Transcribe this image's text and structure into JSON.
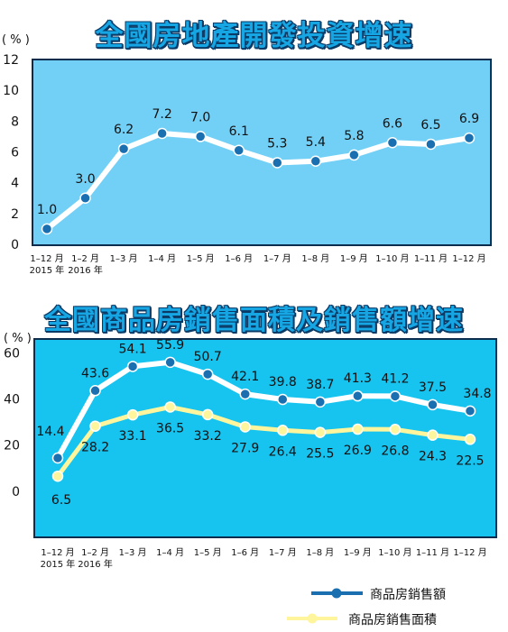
{
  "chart_data": [
    {
      "type": "line",
      "title": "全國房地產開發投資增速",
      "unit_label": "( % )",
      "categories": [
        "1–12 月",
        "1–2 月",
        "1–3 月",
        "1–4 月",
        "1–5 月",
        "1–6 月",
        "1–7 月",
        "1–8 月",
        "1–9 月",
        "1–10 月",
        "1–11 月",
        "1–12 月"
      ],
      "year_labels": [
        "2015 年",
        "2016 年"
      ],
      "yticks": [
        "0",
        "2",
        "4",
        "6",
        "8",
        "10",
        "12"
      ],
      "ylim": [
        0,
        12
      ],
      "grid": false,
      "colors": {
        "background": "#72d0f6",
        "line": "#ffffff",
        "marker": "#1a6fb0"
      },
      "series": [
        {
          "values": [
            1.0,
            3.0,
            6.2,
            7.2,
            7.0,
            6.1,
            5.3,
            5.4,
            5.8,
            6.6,
            6.5,
            6.9
          ],
          "labels": [
            "1.0",
            "3.0",
            "6.2",
            "7.2",
            "7.0",
            "6.1",
            "5.3",
            "5.4",
            "5.8",
            "6.6",
            "6.5",
            "6.9"
          ]
        }
      ]
    },
    {
      "type": "line",
      "title": "全國商品房銷售面積及銷售額增速",
      "unit_label": "( % )",
      "categories": [
        "1–12 月",
        "1–2 月",
        "1–3 月",
        "1–4 月",
        "1–5 月",
        "1–6 月",
        "1–7 月",
        "1–8 月",
        "1–9 月",
        "1–10 月",
        "1–11 月",
        "1–12 月"
      ],
      "year_labels": [
        "2015 年",
        "2016 年"
      ],
      "yticks": [
        "0",
        "20",
        "40",
        "60"
      ],
      "ylim": [
        -20,
        66
      ],
      "grid": false,
      "legend_position": "bottom-right",
      "colors": {
        "background": "#17c3ef",
        "sales_amount": "#1a6fb0",
        "sales_area": "#fff59d"
      },
      "series": [
        {
          "name": "商品房銷售額",
          "values": [
            14.4,
            43.6,
            54.1,
            55.9,
            50.7,
            42.1,
            39.8,
            38.7,
            41.3,
            41.2,
            37.5,
            34.8
          ],
          "labels": [
            "14.4",
            "43.6",
            "54.1",
            "55.9",
            "50.7",
            "42.1",
            "39.8",
            "38.7",
            "41.3",
            "41.2",
            "37.5",
            "34.8"
          ]
        },
        {
          "name": "商品房銷售面積",
          "values": [
            6.5,
            28.2,
            33.1,
            36.5,
            33.2,
            27.9,
            26.4,
            25.5,
            26.9,
            26.8,
            24.3,
            22.5
          ],
          "labels": [
            "6.5",
            "28.2",
            "33.1",
            "36.5",
            "33.2",
            "27.9",
            "26.4",
            "25.5",
            "26.9",
            "26.8",
            "24.3",
            "22.5"
          ]
        }
      ]
    }
  ]
}
